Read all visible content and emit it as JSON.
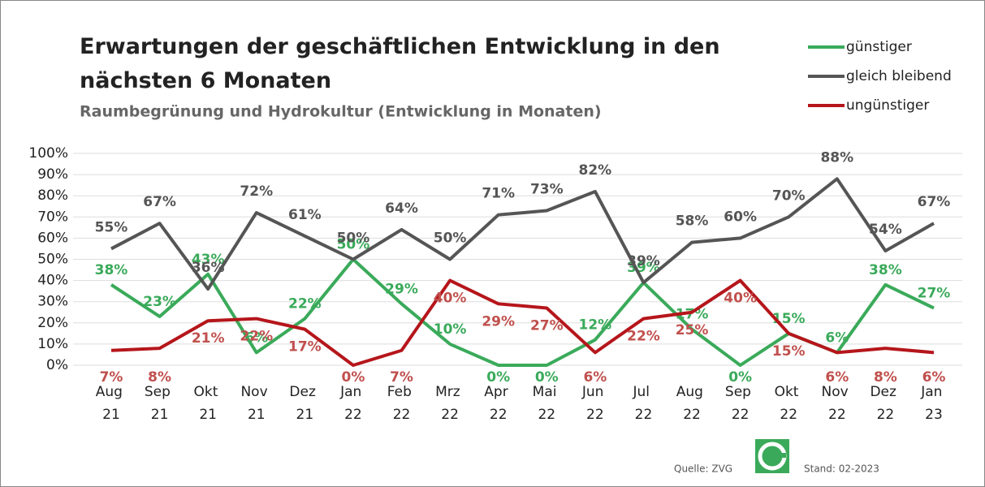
{
  "chart_data": {
    "type": "line",
    "title": "Erwartungen der geschäftlichen Entwicklung in den nächsten 6 Monaten",
    "subtitle": "Raumbegrünung und Hydrokultur (Entwicklung in Monaten)",
    "categories": [
      "Aug 21",
      "Sep 21",
      "Okt 21",
      "Nov 21",
      "Dez 21",
      "Jan 22",
      "Feb 22",
      "Mrz 22",
      "Apr 22",
      "Mai 22",
      "Jun 22",
      "Jul 22",
      "Aug 22",
      "Sep 22",
      "Okt 22",
      "Nov 22",
      "Dez 22",
      "Jan 23"
    ],
    "series": [
      {
        "name": "günstiger",
        "color": "#3aaa5a",
        "values": [
          38,
          23,
          43,
          6,
          22,
          50,
          29,
          10,
          0,
          0,
          12,
          39,
          17,
          0,
          15,
          6,
          38,
          27
        ],
        "value_labels": [
          "38%",
          "23%",
          "43%",
          "6%",
          "22%",
          "50%",
          "29%",
          "10%",
          "0%",
          "0%",
          "12%",
          "39%",
          "17%",
          "0%",
          "15%",
          "6%",
          "38%",
          "27%"
        ]
      },
      {
        "name": "gleich bleibend",
        "color": "#555555",
        "values": [
          55,
          67,
          36,
          72,
          61,
          50,
          64,
          50,
          71,
          73,
          82,
          39,
          58,
          60,
          70,
          88,
          54,
          67
        ],
        "value_labels": [
          "55%",
          "67%",
          "36%",
          "72%",
          "61%",
          "50%",
          "64%",
          "50%",
          "71%",
          "73%",
          "82%",
          "39%",
          "58%",
          "60%",
          "70%",
          "88%",
          "54%",
          "67%"
        ]
      },
      {
        "name": "ungünstiger",
        "color": "#b5161b",
        "values": [
          7,
          8,
          21,
          22,
          17,
          0,
          7,
          40,
          29,
          27,
          6,
          22,
          25,
          40,
          15,
          6,
          8,
          6
        ],
        "value_labels": [
          "7%",
          "8%",
          "21%",
          "22%",
          "17%",
          "0%",
          "7%",
          "40%",
          "29%",
          "27%",
          "6%",
          "22%",
          "25%",
          "40%",
          "15%",
          "6%",
          "8%",
          "6%"
        ]
      }
    ],
    "ylim": [
      0,
      100
    ],
    "yticks": [
      {
        "value": 0,
        "label": "0%"
      },
      {
        "value": 10,
        "label": "10%"
      },
      {
        "value": 20,
        "label": "20%"
      },
      {
        "value": 30,
        "label": "30%"
      },
      {
        "value": 40,
        "label": "40%"
      },
      {
        "value": 50,
        "label": "50%"
      },
      {
        "value": 60,
        "label": "60%"
      },
      {
        "value": 70,
        "label": "70%"
      },
      {
        "value": 80,
        "label": "80%"
      },
      {
        "value": 90,
        "label": "90%"
      },
      {
        "value": 100,
        "label": "100%"
      }
    ],
    "grid": true,
    "source": "Quelle: ZVG",
    "date": "Stand: 02-2023"
  }
}
